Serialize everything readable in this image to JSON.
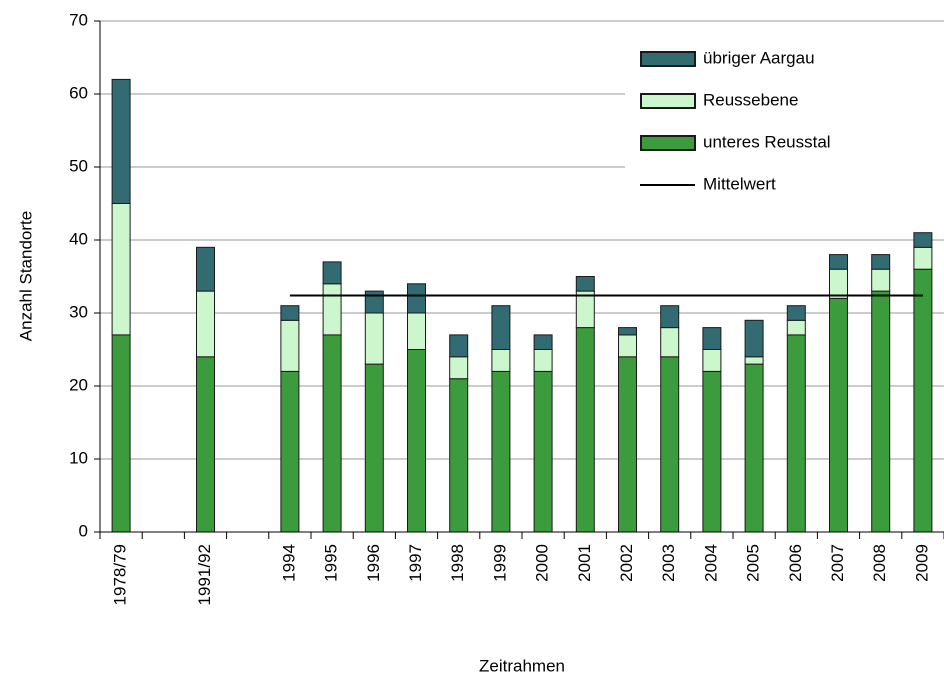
{
  "chart_data": {
    "type": "bar",
    "stacked": true,
    "y_label": "Anzahl Standorte",
    "x_label": "Zeitrahmen",
    "categories": [
      "1978/79",
      null,
      "1991/92",
      null,
      "1994",
      "1995",
      "1996",
      "1997",
      "1998",
      "1999",
      "2000",
      "2001",
      "2002",
      "2003",
      "2004",
      "2005",
      "2006",
      "2007",
      "2008",
      "2009"
    ],
    "series": [
      {
        "name": "unteres Reusstal",
        "color": "#3c9b3c",
        "values": [
          27,
          null,
          24,
          null,
          22,
          27,
          23,
          25,
          21,
          22,
          22,
          28,
          24,
          24,
          22,
          23,
          27,
          32,
          33,
          36
        ]
      },
      {
        "name": "Reussebene",
        "color": "#ccf7cc",
        "values": [
          18,
          null,
          9,
          null,
          7,
          7,
          7,
          5,
          3,
          3,
          3,
          5,
          3,
          4,
          3,
          1,
          2,
          4,
          3,
          3
        ]
      },
      {
        "name": "übriger Aargau",
        "color": "#336b73",
        "values": [
          17,
          null,
          6,
          null,
          2,
          3,
          3,
          4,
          3,
          6,
          2,
          2,
          1,
          3,
          3,
          5,
          2,
          2,
          2,
          2
        ]
      },
      {
        "name": "Mittelwert",
        "type": "line",
        "color": "#000000",
        "values": [
          null,
          null,
          null,
          null,
          32.4,
          32.4,
          32.4,
          32.4,
          32.4,
          32.4,
          32.4,
          32.4,
          32.4,
          32.4,
          32.4,
          32.4,
          32.4,
          32.4,
          32.4,
          32.4
        ]
      }
    ],
    "ylim": [
      0,
      70
    ],
    "yticks": [
      0,
      10,
      20,
      30,
      40,
      50,
      60,
      70
    ],
    "grid": true,
    "legend": "top-right"
  }
}
